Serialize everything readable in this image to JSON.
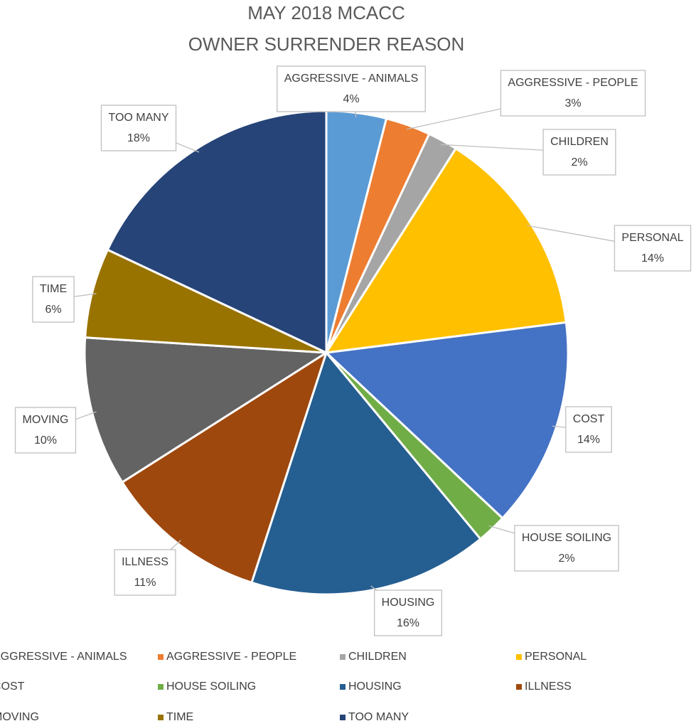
{
  "chart_data": {
    "type": "pie",
    "title": "MAY 2018 MCACC",
    "subtitle": "OWNER SURRENDER REASON",
    "categories": [
      "AGGRESSIVE - ANIMALS",
      "AGGRESSIVE - PEOPLE",
      "CHILDREN",
      "PERSONAL",
      "COST",
      "HOUSE SOILING",
      "HOUSING",
      "ILLNESS",
      "MOVING",
      "TIME",
      "TOO MANY"
    ],
    "values": [
      4,
      3,
      2,
      14,
      14,
      2,
      16,
      11,
      10,
      6,
      18
    ],
    "value_labels": [
      "4%",
      "3%",
      "2%",
      "14%",
      "14%",
      "2%",
      "16%",
      "11%",
      "10%",
      "6%",
      "18%"
    ],
    "colors": [
      "#5b9bd5",
      "#ed7d31",
      "#a5a5a5",
      "#ffc000",
      "#4472c4",
      "#70ad47",
      "#255e91",
      "#9e480e",
      "#636363",
      "#997300",
      "#264478"
    ],
    "legend": "bottom"
  }
}
